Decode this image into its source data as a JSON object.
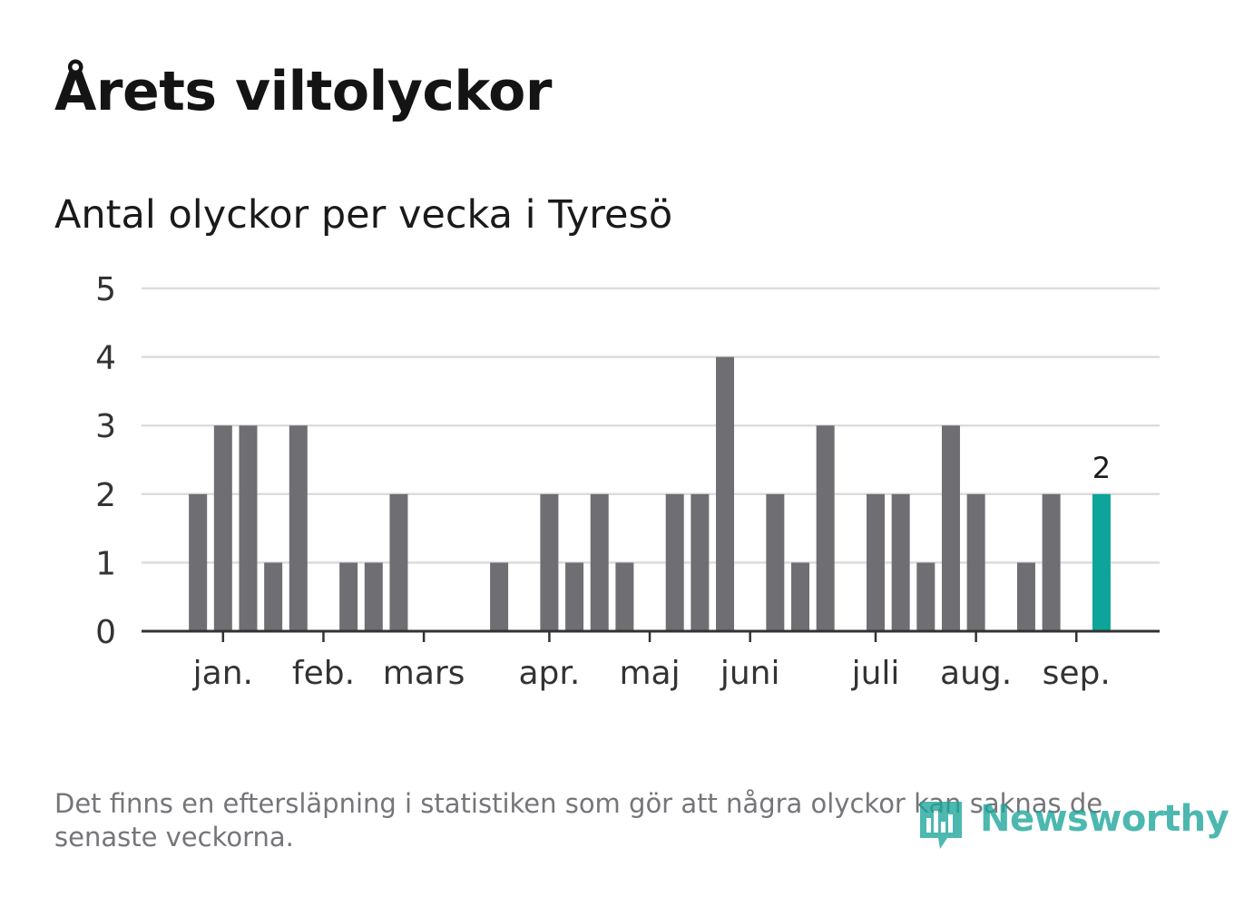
{
  "title": "Årets viltolyckor",
  "subtitle": "Antal olyckor per vecka i Tyresö",
  "footnote": "Det finns en eftersläpning i statistiken som gör att några olyckor kan saknas de senaste veckorna.",
  "logo_text": "Newsworthy",
  "colors": {
    "bar": "#6f6e73",
    "highlight": "#0da49a",
    "grid": "#dcdcdc",
    "axis": "#333333",
    "logo": "#1aa59a"
  },
  "chart_data": {
    "type": "bar",
    "ylim": [
      0,
      5
    ],
    "yticks": [
      0,
      1,
      2,
      3,
      4,
      5
    ],
    "values": [
      0,
      2,
      3,
      3,
      1,
      3,
      0,
      1,
      1,
      2,
      0,
      0,
      0,
      1,
      0,
      2,
      1,
      2,
      1,
      0,
      2,
      2,
      4,
      0,
      2,
      1,
      3,
      0,
      2,
      2,
      1,
      3,
      2,
      0,
      1,
      2,
      0,
      2
    ],
    "highlight_index": 37,
    "highlight_label": "2",
    "month_labels": [
      {
        "label": "jan.",
        "week": 2
      },
      {
        "label": "feb.",
        "week": 6
      },
      {
        "label": "mars",
        "week": 10
      },
      {
        "label": "apr.",
        "week": 15
      },
      {
        "label": "maj",
        "week": 19
      },
      {
        "label": "juni",
        "week": 23
      },
      {
        "label": "juli",
        "week": 28
      },
      {
        "label": "aug.",
        "week": 32
      },
      {
        "label": "sep.",
        "week": 36
      }
    ],
    "grid": true
  }
}
